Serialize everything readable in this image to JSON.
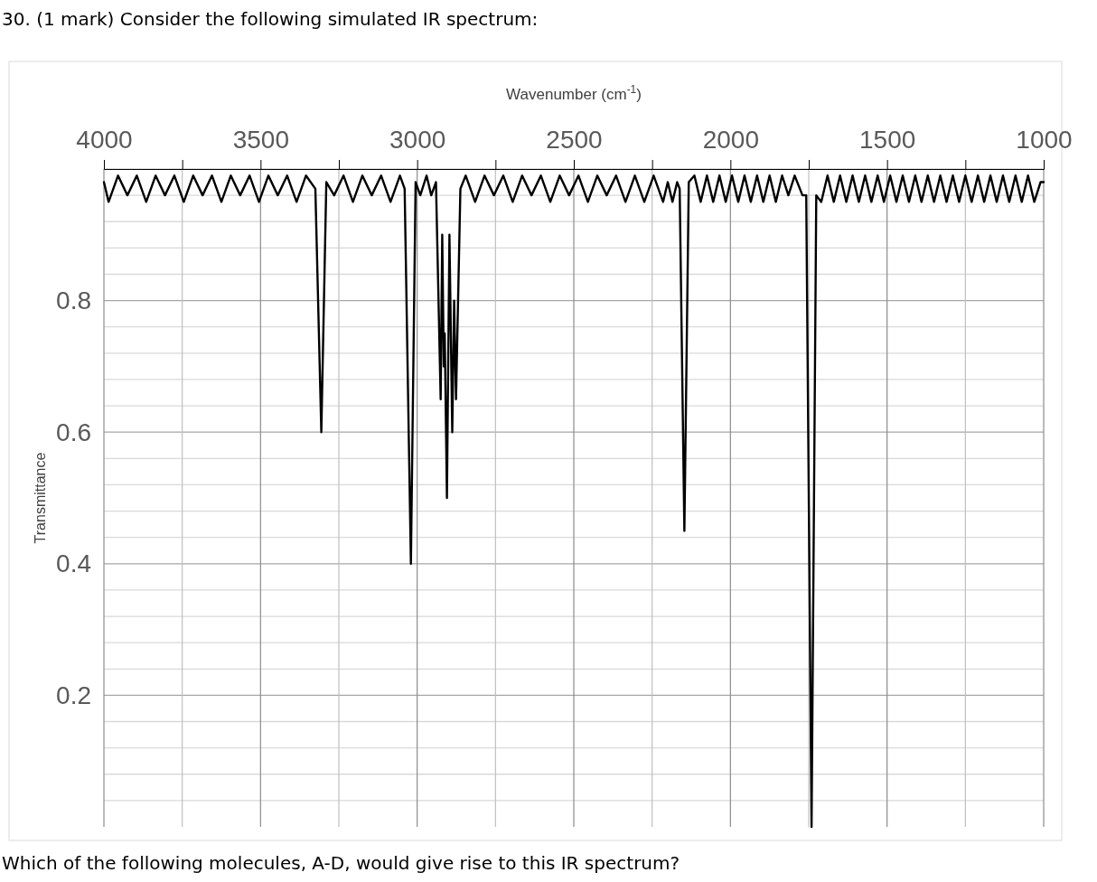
{
  "chart_data": {
    "type": "line",
    "title": "30. (1 mark) Consider the following simulated IR spectrum:",
    "xlabel": "Wavenumber (cm$^{-1}$)",
    "ylabel": "Transmittance",
    "annotations": [
      "Which of the following molecules, A-D, would give rise to this IR spectrum?"
    ],
    "xlim": [
      4000,
      1000
    ],
    "ylim": [
      0,
      1
    ],
    "xticks": [
      4000,
      {
        "value": 3750,
        "label": null
      },
      3500,
      {
        "value": 3250,
        "label": null
      },
      3000,
      {
        "value": 2750,
        "label": null
      },
      2500,
      {
        "value": 2250,
        "label": null
      },
      2000,
      {
        "value": 1750,
        "label": null
      },
      1500,
      {
        "value": 1250,
        "label": null
      },
      1000
    ],
    "yticks": [
      {
        "value": 0.04,
        "label": null
      },
      {
        "value": 0.08,
        "label": null
      },
      {
        "value": 0.12,
        "label": null
      },
      {
        "value": 0.16,
        "label": null
      },
      0.2,
      {
        "value": 0.24,
        "label": null
      },
      {
        "value": 0.28,
        "label": null
      },
      {
        "value": 0.32,
        "label": null
      },
      {
        "value": 0.36,
        "label": null
      },
      0.4,
      {
        "value": 0.44,
        "label": null
      },
      {
        "value": 0.48,
        "label": null
      },
      {
        "value": 0.52,
        "label": null
      },
      {
        "value": 0.56,
        "label": null
      },
      0.6,
      {
        "value": 0.64,
        "label": null
      },
      {
        "value": 0.68,
        "label": null
      },
      {
        "value": 0.72,
        "label": null
      },
      {
        "value": 0.76,
        "label": null
      },
      0.8,
      {
        "value": 0.84,
        "label": null
      },
      {
        "value": 0.88,
        "label": null
      },
      {
        "value": 0.92,
        "label": null
      },
      {
        "value": 0.96,
        "label": null
      },
      {
        "value": 1,
        "label": null
      }
    ],
    "grid": true,
    "line_style": "solid",
    "color": "#000000",
    "x": [
      4000,
      3985,
      3955,
      3925,
      3895,
      3865,
      3835,
      3805,
      3775,
      3745,
      3715,
      3685,
      3655,
      3625,
      3595,
      3565,
      3535,
      3505,
      3475,
      3445,
      3415,
      3385,
      3355,
      3325,
      3306,
      3290,
      3265,
      3235,
      3205,
      3175,
      3145,
      3115,
      3085,
      3055,
      3040,
      3020,
      3005,
      2990,
      2970,
      2955,
      2940,
      2925,
      2920,
      2915,
      2912,
      2905,
      2897,
      2888,
      2882,
      2876,
      2862,
      2845,
      2815,
      2785,
      2755,
      2725,
      2695,
      2665,
      2635,
      2605,
      2575,
      2545,
      2515,
      2485,
      2455,
      2425,
      2395,
      2365,
      2335,
      2305,
      2275,
      2245,
      2215,
      2200,
      2185,
      2170,
      2162,
      2147,
      2133,
      2115,
      2095,
      2075,
      2055,
      2035,
      2015,
      1995,
      1975,
      1955,
      1935,
      1915,
      1895,
      1875,
      1855,
      1835,
      1815,
      1795,
      1770,
      1758,
      1741,
      1726,
      1710,
      1690,
      1670,
      1650,
      1630,
      1610,
      1590,
      1570,
      1550,
      1530,
      1510,
      1490,
      1470,
      1450,
      1430,
      1410,
      1390,
      1370,
      1350,
      1330,
      1310,
      1290,
      1270,
      1250,
      1230,
      1210,
      1190,
      1170,
      1150,
      1130,
      1110,
      1090,
      1070,
      1050,
      1030,
      1010,
      1000
    ],
    "values": [
      0.98,
      0.95,
      0.99,
      0.96,
      0.99,
      0.95,
      0.99,
      0.96,
      0.99,
      0.95,
      0.99,
      0.96,
      0.99,
      0.95,
      0.99,
      0.96,
      0.99,
      0.95,
      0.99,
      0.96,
      0.99,
      0.95,
      0.99,
      0.97,
      0.6,
      0.98,
      0.96,
      0.99,
      0.95,
      0.99,
      0.96,
      0.99,
      0.95,
      0.99,
      0.97,
      0.4,
      0.98,
      0.96,
      0.99,
      0.96,
      0.98,
      0.65,
      0.9,
      0.7,
      0.75,
      0.5,
      0.9,
      0.6,
      0.8,
      0.65,
      0.97,
      0.99,
      0.95,
      0.99,
      0.96,
      0.99,
      0.95,
      0.99,
      0.96,
      0.99,
      0.95,
      0.99,
      0.96,
      0.99,
      0.95,
      0.99,
      0.96,
      0.99,
      0.95,
      0.99,
      0.95,
      0.99,
      0.95,
      0.98,
      0.95,
      0.98,
      0.97,
      0.45,
      0.98,
      0.99,
      0.95,
      0.99,
      0.95,
      0.99,
      0.95,
      0.99,
      0.95,
      0.99,
      0.95,
      0.99,
      0.95,
      0.99,
      0.95,
      0.99,
      0.96,
      0.99,
      0.96,
      0.96,
      0,
      0.96,
      0.95,
      0.99,
      0.95,
      0.99,
      0.95,
      0.99,
      0.95,
      0.99,
      0.95,
      0.99,
      0.95,
      0.99,
      0.95,
      0.99,
      0.95,
      0.99,
      0.95,
      0.99,
      0.95,
      0.99,
      0.95,
      0.99,
      0.95,
      0.99,
      0.95,
      0.99,
      0.95,
      0.99,
      0.95,
      0.99,
      0.95,
      0.99,
      0.95,
      0.99,
      0.95,
      0.98,
      0.98
    ]
  }
}
